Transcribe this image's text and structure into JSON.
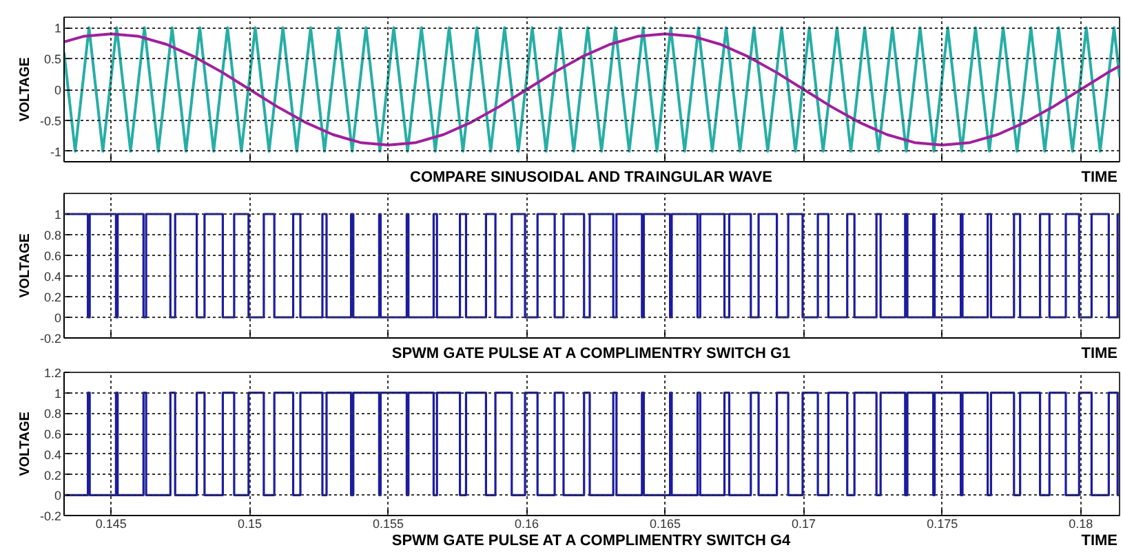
{
  "chart_data": [
    {
      "type": "line",
      "xlabel": "COMPARE SINUSOIDAL AND TRAINGULAR WAVE",
      "ylabel": "VOLTAGE",
      "annotations": [
        "TIME"
      ],
      "xlim": [
        0.1433,
        0.1814
      ],
      "xticks": [
        0.145,
        0.15,
        0.155,
        0.16,
        0.165,
        0.17,
        0.175,
        0.18
      ],
      "ylim": [
        -1.17,
        1.17
      ],
      "yticks": [
        -1,
        -0.5,
        0,
        0.5,
        1
      ],
      "grid": true,
      "tick_labels": "y",
      "line_style": "solid",
      "series": [
        {
          "color": "#26aea6",
          "x": [
            0.1433,
            0.1437,
            0.1442,
            0.1447,
            0.1452,
            0.1457,
            0.1462,
            0.1467,
            0.1472,
            0.1477,
            0.1482,
            0.1487,
            0.1492,
            0.1497,
            0.1502,
            0.1507,
            0.1512,
            0.1517,
            0.1522,
            0.1527,
            0.1532,
            0.1537,
            0.1542,
            0.1547,
            0.1552,
            0.1557,
            0.1562,
            0.1567,
            0.1572,
            0.1577,
            0.1582,
            0.1587,
            0.1592,
            0.1597,
            0.1602,
            0.1607,
            0.1612,
            0.1617,
            0.1622,
            0.1627,
            0.1632,
            0.1637,
            0.1642,
            0.1647,
            0.1652,
            0.1657,
            0.1662,
            0.1667,
            0.1672,
            0.1677,
            0.1682,
            0.1687,
            0.1692,
            0.1697,
            0.1702,
            0.1707,
            0.1712,
            0.1717,
            0.1722,
            0.1727,
            0.1732,
            0.1737,
            0.1742,
            0.1747,
            0.1752,
            0.1757,
            0.1762,
            0.1767,
            0.1772,
            0.1777,
            0.1782,
            0.1787,
            0.1792,
            0.1797,
            0.1802,
            0.1807,
            0.1812,
            0.1814
          ],
          "values": [
            0.6,
            -1,
            1,
            -1,
            1,
            -1,
            1,
            -1,
            1,
            -1,
            1,
            -1,
            1,
            -1,
            1,
            -1,
            1,
            -1,
            1,
            -1,
            1,
            -1,
            1,
            -1,
            1,
            -1,
            1,
            -1,
            1,
            -1,
            1,
            -1,
            1,
            -1,
            1,
            -1,
            1,
            -1,
            1,
            -1,
            1,
            -1,
            1,
            -1,
            1,
            -1,
            1,
            -1,
            1,
            -1,
            1,
            -1,
            1,
            -1,
            1,
            -1,
            1,
            -1,
            1,
            -1,
            1,
            -1,
            1,
            -1,
            1,
            -1,
            1,
            -1,
            1,
            -1,
            1,
            -1,
            1,
            -1,
            1,
            -1,
            1,
            0.2
          ]
        },
        {
          "color": "#a0209c",
          "x": [
            0.1433,
            0.144,
            0.145,
            0.146,
            0.147,
            0.148,
            0.149,
            0.15,
            0.151,
            0.152,
            0.153,
            0.154,
            0.155,
            0.156,
            0.157,
            0.158,
            0.159,
            0.16,
            0.161,
            0.162,
            0.163,
            0.164,
            0.165,
            0.166,
            0.167,
            0.168,
            0.169,
            0.17,
            0.171,
            0.172,
            0.173,
            0.174,
            0.175,
            0.176,
            0.177,
            0.178,
            0.179,
            0.18,
            0.181,
            0.1814
          ],
          "values": [
            0.77,
            0.86,
            0.9,
            0.86,
            0.73,
            0.53,
            0.28,
            0,
            -0.28,
            -0.53,
            -0.73,
            -0.86,
            -0.9,
            -0.86,
            -0.73,
            -0.53,
            -0.28,
            0,
            0.28,
            0.53,
            0.73,
            0.86,
            0.9,
            0.86,
            0.73,
            0.53,
            0.28,
            0,
            -0.28,
            -0.53,
            -0.73,
            -0.86,
            -0.9,
            -0.86,
            -0.73,
            -0.53,
            -0.28,
            0,
            0.28,
            0.38
          ]
        }
      ]
    },
    {
      "type": "step",
      "xlabel": "SPWM GATE PULSE AT A COMPLIMENTRY SWITCH G1",
      "ylabel": "VOLTAGE",
      "annotations": [
        "TIME"
      ],
      "xlim": [
        0.1433,
        0.1814
      ],
      "xticks": [
        0.145,
        0.15,
        0.155,
        0.16,
        0.165,
        0.17,
        0.175,
        0.18
      ],
      "ylim": [
        -0.2,
        1.2
      ],
      "yticks": [
        -0.2,
        0,
        0.2,
        0.4,
        0.6,
        0.8,
        1
      ],
      "grid": true,
      "tick_labels": "y",
      "line_style": "solid",
      "series": [
        {
          "color": "#1c1ca0",
          "x": [
            0.1433,
            0.14416,
            0.144225,
            0.145175,
            0.145233,
            0.146167,
            0.146262,
            0.147138,
            0.14731,
            0.14809,
            0.14837,
            0.14903,
            0.14944,
            0.14996,
            0.15051,
            0.15089,
            0.15157,
            0.15183,
            0.152625,
            0.152775,
            0.15366,
            0.15374,
            0.154675,
            0.154725,
            0.15567,
            0.15573,
            0.15664,
            0.15676,
            0.15759,
            0.15781,
            0.15853,
            0.15887,
            0.15946,
            0.15994,
            0.16039,
            0.16101,
            0.16133,
            0.16207,
            0.162275,
            0.163125,
            0.16324,
            0.16416,
            0.164225,
            0.165175,
            0.165233,
            0.166167,
            0.166262,
            0.167138,
            0.16731,
            0.16809,
            0.16837,
            0.16903,
            0.16944,
            0.16996,
            0.17051,
            0.17089,
            0.17157,
            0.17183,
            0.172625,
            0.172775,
            0.17366,
            0.17374,
            0.174675,
            0.174725,
            0.17567,
            0.17573,
            0.17664,
            0.17676,
            0.17759,
            0.17781,
            0.17853,
            0.17887,
            0.17946,
            0.17994,
            0.18039,
            0.18101,
            0.18133,
            0.1814
          ],
          "values": [
            1,
            0,
            1,
            0,
            1,
            0,
            1,
            0,
            1,
            0,
            1,
            0,
            1,
            0,
            1,
            0,
            1,
            0,
            1,
            0,
            1,
            0,
            1,
            0,
            1,
            0,
            1,
            0,
            1,
            0,
            1,
            0,
            1,
            0,
            1,
            0,
            1,
            0,
            1,
            0,
            1,
            0,
            1,
            0,
            1,
            0,
            1,
            0,
            1,
            0,
            1,
            0,
            1,
            0,
            1,
            0,
            1,
            0,
            1,
            0,
            1,
            0,
            1,
            0,
            1,
            0,
            1,
            0,
            1,
            0,
            1,
            0,
            1,
            0,
            1,
            0,
            1,
            1
          ]
        }
      ]
    },
    {
      "type": "step",
      "xlabel": "SPWM GATE PULSE AT A COMPLIMENTRY SWITCH G4",
      "ylabel": "VOLTAGE",
      "annotations": [
        "TIME"
      ],
      "xlim": [
        0.1433,
        0.1814
      ],
      "xticks": [
        0.145,
        0.15,
        0.155,
        0.16,
        0.165,
        0.17,
        0.175,
        0.18
      ],
      "ylim": [
        -0.2,
        1.2
      ],
      "yticks": [
        -0.2,
        0,
        0.2,
        0.4,
        0.6,
        0.8,
        1,
        1.2
      ],
      "grid": true,
      "line_style": "solid",
      "series": [
        {
          "color": "#1c1ca0",
          "x": [
            0.1433,
            0.14416,
            0.144225,
            0.145175,
            0.145233,
            0.146167,
            0.146262,
            0.147138,
            0.14731,
            0.14809,
            0.14837,
            0.14903,
            0.14944,
            0.14996,
            0.15051,
            0.15089,
            0.15157,
            0.15183,
            0.152625,
            0.152775,
            0.15366,
            0.15374,
            0.154675,
            0.154725,
            0.15567,
            0.15573,
            0.15664,
            0.15676,
            0.15759,
            0.15781,
            0.15853,
            0.15887,
            0.15946,
            0.15994,
            0.16039,
            0.16101,
            0.16133,
            0.16207,
            0.162275,
            0.163125,
            0.16324,
            0.16416,
            0.164225,
            0.165175,
            0.165233,
            0.166167,
            0.166262,
            0.167138,
            0.16731,
            0.16809,
            0.16837,
            0.16903,
            0.16944,
            0.16996,
            0.17051,
            0.17089,
            0.17157,
            0.17183,
            0.172625,
            0.172775,
            0.17366,
            0.17374,
            0.174675,
            0.174725,
            0.17567,
            0.17573,
            0.17664,
            0.17676,
            0.17759,
            0.17781,
            0.17853,
            0.17887,
            0.17946,
            0.17994,
            0.18039,
            0.18101,
            0.18133,
            0.1814
          ],
          "values": [
            0,
            1,
            0,
            1,
            0,
            1,
            0,
            1,
            0,
            1,
            0,
            1,
            0,
            1,
            0,
            1,
            0,
            1,
            0,
            1,
            0,
            1,
            0,
            1,
            0,
            1,
            0,
            1,
            0,
            1,
            0,
            1,
            0,
            1,
            0,
            1,
            0,
            1,
            0,
            1,
            0,
            1,
            0,
            1,
            0,
            1,
            0,
            1,
            0,
            1,
            0,
            1,
            0,
            1,
            0,
            1,
            0,
            1,
            0,
            1,
            0,
            1,
            0,
            1,
            0,
            1,
            0,
            1,
            0,
            1,
            0,
            1,
            0,
            1,
            0,
            1,
            0,
            0
          ]
        }
      ]
    }
  ]
}
